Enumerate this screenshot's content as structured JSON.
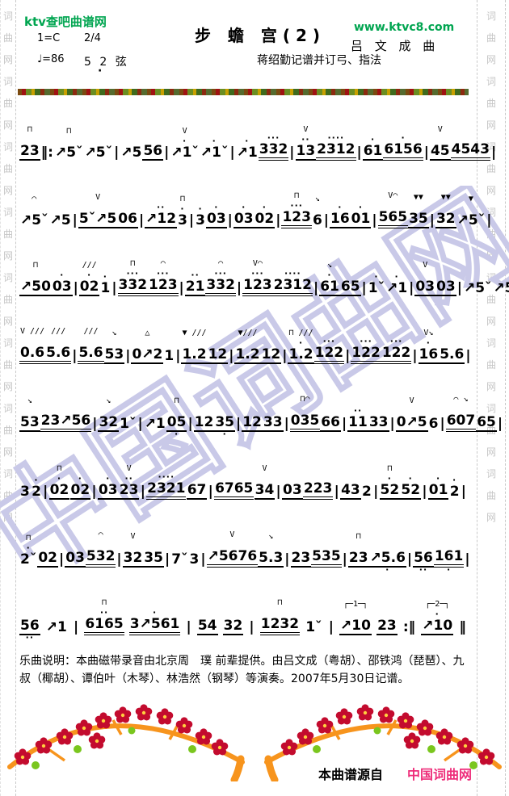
{
  "header": {
    "site_name": "ktv查吧曲谱网",
    "site_url": "www.ktvc8.com",
    "key_signature": "1=C",
    "time_signature": "2/4",
    "tempo": "♩=86",
    "tuning": "5 2 弦",
    "tuning_dot": "·",
    "title": "步 蟾 宫(2)",
    "composer": "吕 文 成 曲",
    "transcriber": "蒋绍勤记谱并订弓、指法",
    "accent_green": "#00a550"
  },
  "margins": {
    "text": "词曲网",
    "repeat": 8,
    "color": "#c6c6c6"
  },
  "watermark": {
    "text": "中国词曲网",
    "color": "#c9c9e8"
  },
  "music": {
    "legend": {
      "down_bow": "⊓",
      "up_bow": "V",
      "slide_up": "↗",
      "slide_down": "ˇ"
    },
    "lines": [
      [
        {
          "m": "⊓",
          "t": "23",
          "u": 1
        },
        {
          "bar": "‖:"
        },
        {
          "m": "⊓",
          "t": "↗5ˇ"
        },
        {
          "t": "↗5ˇ"
        },
        {
          "bar": "|"
        },
        {
          "t": "↗5"
        },
        {
          "t": "56",
          "u": 1
        },
        {
          "bar": "|"
        },
        {
          "m": "V",
          "t": "↗1ˇ",
          "da": "·"
        },
        {
          "t": "↗1ˇ",
          "da": "·"
        },
        {
          "bar": "|"
        },
        {
          "t": "↗1",
          "da": "·"
        },
        {
          "t": "332",
          "u": 2,
          "da": "···"
        },
        {
          "bar": "|"
        },
        {
          "m": "V",
          "t": "13",
          "u": 1,
          "da": "··"
        },
        {
          "t": "2312",
          "u": 2,
          "da": "····"
        },
        {
          "bar": "|"
        },
        {
          "t": "61",
          "u": 1,
          "da": "·"
        },
        {
          "t": "6156",
          "u": 2,
          "da": "·"
        },
        {
          "bar": "|"
        },
        {
          "m": "V",
          "t": "45",
          "u": 1
        },
        {
          "t": "4543",
          "u": 2
        },
        {
          "bar": "|"
        }
      ],
      [
        {
          "m": "◠",
          "t": "↗5ˇ"
        },
        {
          "t": "↗5"
        },
        {
          "bar": "|"
        },
        {
          "m": "V",
          "t": "5ˇ↗5",
          "u": 1
        },
        {
          "t": "06",
          "u": 1
        },
        {
          "bar": "|"
        },
        {
          "t": "↗12",
          "u": 1,
          "da": "··"
        },
        {
          "m": "⊓",
          "t": "3",
          "da": "·"
        },
        {
          "bar": "|"
        },
        {
          "t": "3",
          "da": "·"
        },
        {
          "t": "03",
          "u": 1,
          "da": "·"
        },
        {
          "bar": "|"
        },
        {
          "t": "03",
          "u": 1,
          "da": "·"
        },
        {
          "t": "02",
          "u": 1,
          "da": "·"
        },
        {
          "bar": "|"
        },
        {
          "m": "⊓",
          "t": "123",
          "u": 2,
          "da": "···"
        },
        {
          "m": "↘",
          "t": "6"
        },
        {
          "bar": "|"
        },
        {
          "t": "16",
          "u": 1,
          "da": "·"
        },
        {
          "t": "01",
          "u": 1,
          "da": "·"
        },
        {
          "bar": "|"
        },
        {
          "m": "V◠",
          "t": "565",
          "u": 2
        },
        {
          "m": "▼▼",
          "t": "35",
          "u": 1
        },
        {
          "bar": "|"
        },
        {
          "m": "▼▼",
          "t": "32",
          "u": 1
        },
        {
          "m": "▼",
          "t": "↗5ˇ"
        },
        {
          "bar": "|"
        }
      ],
      [
        {
          "m": "⊓",
          "t": "↗50",
          "u": 1
        },
        {
          "t": "03",
          "u": 1,
          "da": "·"
        },
        {
          "bar": "|"
        },
        {
          "m": "///",
          "t": "02",
          "u": 1,
          "da": "·"
        },
        {
          "t": "1",
          "da": "·"
        },
        {
          "bar": "|"
        },
        {
          "m": "⊓",
          "t": "332",
          "u": 2,
          "da": "···"
        },
        {
          "m": "◠",
          "t": "123",
          "u": 2,
          "da": "···"
        },
        {
          "bar": "|"
        },
        {
          "t": "21",
          "u": 1,
          "da": "··"
        },
        {
          "m": "◠",
          "t": "332",
          "u": 2,
          "da": "···"
        },
        {
          "bar": "|"
        },
        {
          "m": "V◠",
          "t": "123",
          "u": 2,
          "da": "···"
        },
        {
          "t": "2312",
          "u": 2,
          "da": "····"
        },
        {
          "bar": "|"
        },
        {
          "m": "↘",
          "t": "61",
          "u": 1,
          "da": "·"
        },
        {
          "t": "65",
          "u": 1
        },
        {
          "bar": "|"
        },
        {
          "t": "1ˇ",
          "da": "·"
        },
        {
          "t": "↗1",
          "da": "·"
        },
        {
          "bar": "|"
        },
        {
          "m": "V",
          "t": "03",
          "u": 1
        },
        {
          "t": "03",
          "u": 1
        },
        {
          "bar": "|"
        },
        {
          "t": "↗5ˇ"
        },
        {
          "t": "↗5"
        },
        {
          "bar": "|"
        }
      ],
      [
        {
          "m": "V ///",
          "t": "0.6",
          "u": 2
        },
        {
          "m": "///",
          "t": "5.6",
          "u": 2
        },
        {
          "bar": "|"
        },
        {
          "m": "///",
          "t": "5.6",
          "u": 2
        },
        {
          "m": "↘",
          "t": "53",
          "u": 1
        },
        {
          "bar": "|"
        },
        {
          "m": "△",
          "t": "0↗2",
          "u": 1
        },
        {
          "t": "1"
        },
        {
          "bar": "|"
        },
        {
          "m": "▼ ///",
          "t": "1.2",
          "u": 1
        },
        {
          "t": "12",
          "u": 1
        },
        {
          "bar": "|"
        },
        {
          "m": "▼///",
          "t": "1.2",
          "u": 1
        },
        {
          "t": "12",
          "u": 1
        },
        {
          "bar": "|"
        },
        {
          "m": "⊓ ///",
          "t": "1.2",
          "u": 1,
          "da": "·"
        },
        {
          "t": "122",
          "u": 2,
          "da": "···"
        },
        {
          "bar": "|"
        },
        {
          "t": "122",
          "u": 2,
          "da": "···"
        },
        {
          "t": "122",
          "u": 2,
          "da": "···"
        },
        {
          "bar": "|"
        },
        {
          "m": "V↘",
          "t": "16",
          "u": 1,
          "da": "·"
        },
        {
          "t": "5.6",
          "u": 1
        },
        {
          "bar": "|"
        }
      ],
      [
        {
          "m": "↘",
          "t": "53",
          "u": 1
        },
        {
          "t": "23↗56",
          "u": 2
        },
        {
          "bar": "|"
        },
        {
          "m": "↘",
          "t": "32",
          "u": 1
        },
        {
          "t": "1ˇ"
        },
        {
          "bar": "|"
        },
        {
          "t": "↗1"
        },
        {
          "m": "⊓",
          "t": "05",
          "u": 1,
          "db": "·"
        },
        {
          "bar": "|"
        },
        {
          "t": "12",
          "u": 1
        },
        {
          "t": "35",
          "u": 1,
          "db": "·"
        },
        {
          "bar": "|"
        },
        {
          "t": "12",
          "u": 1
        },
        {
          "t": "33",
          "u": 1
        },
        {
          "bar": "|"
        },
        {
          "m": "⊓◠",
          "t": "035",
          "u": 2
        },
        {
          "t": "66",
          "u": 1
        },
        {
          "bar": "|"
        },
        {
          "t": "11",
          "u": 1,
          "da": "··"
        },
        {
          "t": "33",
          "u": 1
        },
        {
          "bar": "|"
        },
        {
          "m": "V",
          "t": "0↗5",
          "u": 1
        },
        {
          "t": "6"
        },
        {
          "bar": "|"
        },
        {
          "m": "⌒ ↘",
          "t": "607",
          "u": 2
        },
        {
          "t": "65",
          "u": 1
        },
        {
          "bar": "|"
        }
      ],
      [
        {
          "t": "3"
        },
        {
          "t": "2",
          "da": "·"
        },
        {
          "bar": "|"
        },
        {
          "m": "⊓",
          "t": "02",
          "u": 1,
          "da": "·"
        },
        {
          "t": "02",
          "u": 1,
          "da": "·"
        },
        {
          "bar": "|"
        },
        {
          "t": "03",
          "u": 1,
          "da": "·"
        },
        {
          "m": "V",
          "t": "23",
          "u": 1,
          "da": "··"
        },
        {
          "bar": "|"
        },
        {
          "t": "2321",
          "u": 2,
          "da": "····"
        },
        {
          "t": "67",
          "u": 1
        },
        {
          "bar": "|"
        },
        {
          "t": "6765",
          "u": 2
        },
        {
          "m": "V",
          "t": "34",
          "u": 1
        },
        {
          "bar": "|"
        },
        {
          "t": "03",
          "u": 1
        },
        {
          "t": "223",
          "u": 2
        },
        {
          "bar": "|"
        },
        {
          "t": "43",
          "u": 1
        },
        {
          "t": "2"
        },
        {
          "bar": "|"
        },
        {
          "m": "⊓",
          "t": "52",
          "u": 1,
          "da": "·"
        },
        {
          "t": "52",
          "u": 1,
          "da": "·"
        },
        {
          "bar": "|"
        },
        {
          "t": "01",
          "u": 1,
          "da": "·"
        },
        {
          "t": "2",
          "da": "·"
        },
        {
          "bar": "|"
        }
      ],
      [
        {
          "m": "⊓",
          "t": "2ˇ",
          "da": "·"
        },
        {
          "t": "02",
          "u": 1
        },
        {
          "bar": "|"
        },
        {
          "t": "03",
          "u": 1
        },
        {
          "m": "◠",
          "t": "532",
          "u": 2
        },
        {
          "bar": "|"
        },
        {
          "m": "V",
          "t": "32",
          "u": 1
        },
        {
          "t": "35",
          "u": 1
        },
        {
          "bar": "|"
        },
        {
          "t": "7ˇ"
        },
        {
          "t": "3"
        },
        {
          "bar": "|"
        },
        {
          "m": "V",
          "t": "↗5676",
          "u": 2
        },
        {
          "m": "↘",
          "t": "5.3",
          "u": 1
        },
        {
          "bar": "|"
        },
        {
          "t": "23",
          "u": 1
        },
        {
          "t": "535",
          "u": 2
        },
        {
          "bar": "|"
        },
        {
          "m": "⊓",
          "t": "23",
          "u": 1
        },
        {
          "t": "↗5.6",
          "u": 1,
          "db": "·"
        },
        {
          "bar": "|"
        },
        {
          "t": "56",
          "u": 1,
          "db": "··"
        },
        {
          "t": "161",
          "u": 2,
          "db": "·"
        },
        {
          "bar": "|"
        }
      ],
      [
        {
          "t": "56",
          "u": 1,
          "db": "··"
        },
        {
          "t": "↗1"
        },
        {
          "bar": "|"
        },
        {
          "m": "⊓",
          "t": "6165",
          "u": 2,
          "da": "··"
        },
        {
          "t": "3↗561",
          "u": 2,
          "da": "·"
        },
        {
          "bar": "|"
        },
        {
          "t": "54",
          "u": 1
        },
        {
          "t": "32",
          "u": 1
        },
        {
          "bar": "|"
        },
        {
          "m": "⊓",
          "t": "1232",
          "u": 2
        },
        {
          "t": "1ˇ"
        },
        {
          "bar": "|"
        },
        {
          "m": "┌─1─┐",
          "t": "↗10",
          "u": 1
        },
        {
          "t": "23",
          "u": 1
        },
        {
          "bar": ":‖"
        },
        {
          "m": "┌─2─┐",
          "t": "↗10",
          "u": 1,
          "da": "·"
        },
        {
          "bar": "‖"
        }
      ]
    ]
  },
  "footer": {
    "description": "乐曲说明：本曲磁带录音由北京周　璞 前辈提供。由吕文成（粤胡）、邵铁鸿（琵琶）、九叔（椰胡）、谭伯叶（木琴）、林浩然（钢琴）等演奏。2007年5月30日记谱。",
    "source_prefix": "本曲谱源自",
    "source_site": "中国词曲网",
    "source_site_color": "#ee2d7a"
  }
}
